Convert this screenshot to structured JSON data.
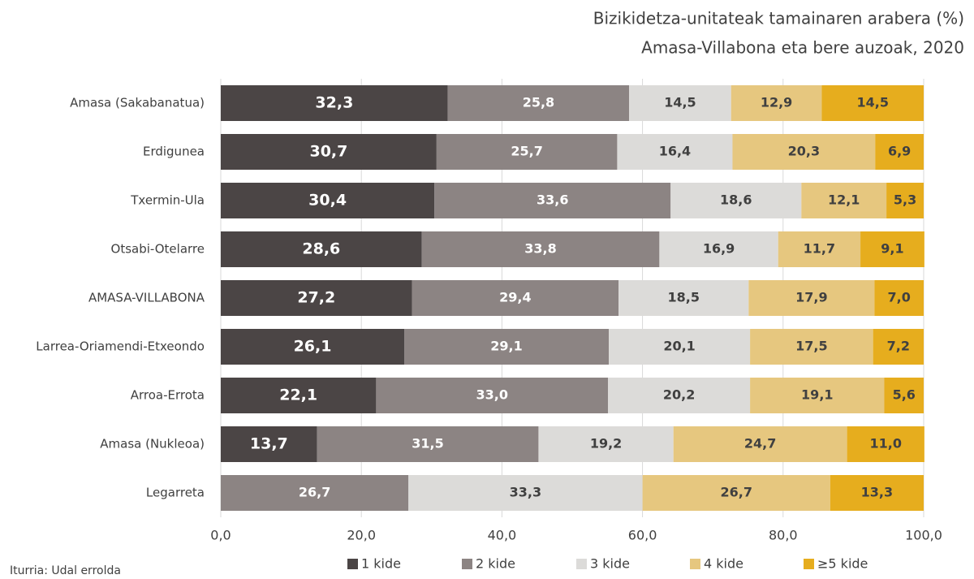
{
  "chart_data": {
    "type": "stacked-barh",
    "title": "Bizikidetza-unitateak tamainaren arabera (%)",
    "subtitle": "Amasa-Villabona eta bere auzoak, 2020",
    "source": "Iturria: Udal errolda",
    "categories": [
      "Amasa (Sakabanatua)",
      "Erdigunea",
      "Txermin-Ula",
      "Otsabi-Otelarre",
      "AMASA-VILLABONA",
      "Larrea-Oriamendi-Etxeondo",
      "Arroa-Errota",
      "Amasa (Nukleoa)",
      "Legarreta"
    ],
    "series": [
      {
        "name": "1 kide",
        "color": "#4b4545",
        "label_color": "#ffffff",
        "values": [
          32.3,
          30.7,
          30.4,
          28.6,
          27.2,
          26.1,
          22.1,
          13.7,
          null
        ],
        "value_labels": [
          "32,3",
          "30,7",
          "30,4",
          "28,6",
          "27,2",
          "26,1",
          "22,1",
          "13,7",
          null
        ]
      },
      {
        "name": "2 kide",
        "color": "#8c8483",
        "label_color": "#ffffff",
        "values": [
          25.8,
          25.7,
          33.6,
          33.8,
          29.4,
          29.1,
          33.0,
          31.5,
          26.7
        ],
        "value_labels": [
          "25,8",
          "25,7",
          "33,6",
          "33,8",
          "29,4",
          "29,1",
          "33,0",
          "31,5",
          "26,7"
        ]
      },
      {
        "name": "3 kide",
        "color": "#dcdbd9",
        "label_color": "#404040",
        "values": [
          14.5,
          16.4,
          18.6,
          16.9,
          18.5,
          20.1,
          20.2,
          19.2,
          33.3
        ],
        "value_labels": [
          "14,5",
          "16,4",
          "18,6",
          "16,9",
          "18,5",
          "20,1",
          "20,2",
          "19,2",
          "33,3"
        ]
      },
      {
        "name": "4 kide",
        "color": "#e6c77f",
        "label_color": "#404040",
        "values": [
          12.9,
          20.3,
          12.1,
          11.7,
          17.9,
          17.5,
          19.1,
          24.7,
          26.7
        ],
        "value_labels": [
          "12,9",
          "20,3",
          "12,1",
          "11,7",
          "17,9",
          "17,5",
          "19,1",
          "24,7",
          "26,7"
        ]
      },
      {
        "name": "≥5 kide",
        "color": "#e6ad1e",
        "label_color": "#404040",
        "values": [
          14.5,
          6.9,
          5.3,
          9.1,
          7.0,
          7.2,
          5.6,
          11.0,
          13.3
        ],
        "value_labels": [
          "14,5",
          "6,9",
          "5,3",
          "9,1",
          "7,0",
          "7,2",
          "5,6",
          "11,0",
          "13,3"
        ]
      }
    ],
    "xlim": [
      0,
      100
    ],
    "xticks": [
      {
        "value": 0,
        "label": "0,0"
      },
      {
        "value": 20,
        "label": "20,0"
      },
      {
        "value": 40,
        "label": "40,0"
      },
      {
        "value": 60,
        "label": "60,0"
      },
      {
        "value": 80,
        "label": "80,0"
      },
      {
        "value": 100,
        "label": "100,0"
      }
    ],
    "grid": true
  }
}
